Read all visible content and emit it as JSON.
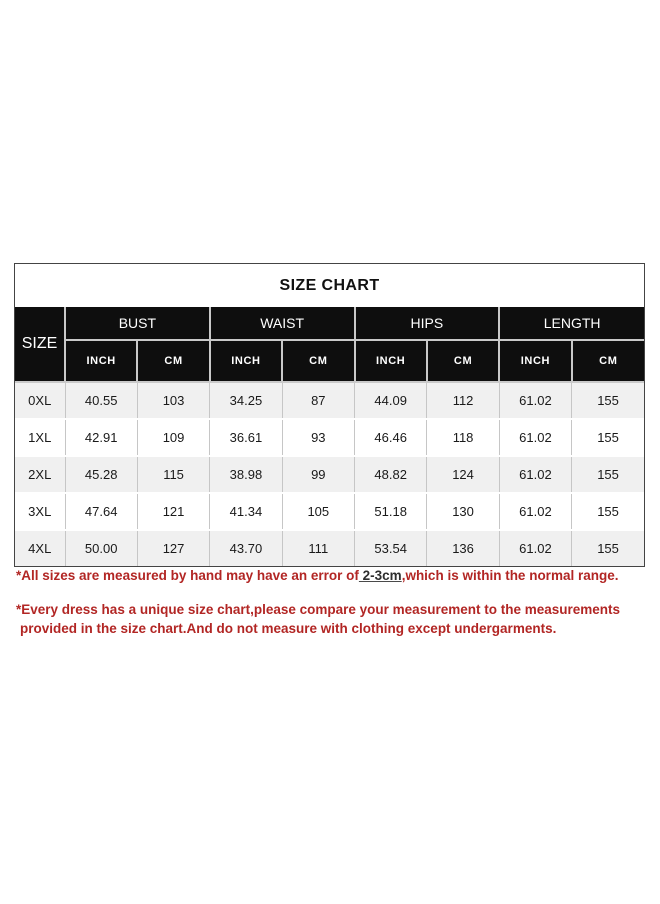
{
  "page": {
    "background_color": "#ffffff"
  },
  "size_chart": {
    "title": "SIZE CHART",
    "size_col_header": "SIZE",
    "groups": [
      {
        "label": "BUST"
      },
      {
        "label": "WAIST"
      },
      {
        "label": "HIPS"
      },
      {
        "label": "LENGTH"
      }
    ],
    "unit_headers": [
      "INCH",
      "CM"
    ],
    "rows": [
      {
        "size": "0XL",
        "bust_inch": "40.55",
        "bust_cm": "103",
        "waist_inch": "34.25",
        "waist_cm": "87",
        "hips_inch": "44.09",
        "hips_cm": "112",
        "length_inch": "61.02",
        "length_cm": "155"
      },
      {
        "size": "1XL",
        "bust_inch": "42.91",
        "bust_cm": "109",
        "waist_inch": "36.61",
        "waist_cm": "93",
        "hips_inch": "46.46",
        "hips_cm": "118",
        "length_inch": "61.02",
        "length_cm": "155"
      },
      {
        "size": "2XL",
        "bust_inch": "45.28",
        "bust_cm": "115",
        "waist_inch": "38.98",
        "waist_cm": "99",
        "hips_inch": "48.82",
        "hips_cm": "124",
        "length_inch": "61.02",
        "length_cm": "155"
      },
      {
        "size": "3XL",
        "bust_inch": "47.64",
        "bust_cm": "121",
        "waist_inch": "41.34",
        "waist_cm": "105",
        "hips_inch": "51.18",
        "hips_cm": "130",
        "length_inch": "61.02",
        "length_cm": "155"
      },
      {
        "size": "4XL",
        "bust_inch": "50.00",
        "bust_cm": "127",
        "waist_inch": "43.70",
        "waist_cm": "111",
        "hips_inch": "53.54",
        "hips_cm": "136",
        "length_inch": "61.02",
        "length_cm": "155"
      }
    ],
    "header_bg_color": "#0e0e0e",
    "shaded_row_color": "#f0f0f0"
  },
  "notes": {
    "color": "#b22624",
    "note1_prefix": "*All sizes are measured by hand may have an error of",
    "note1_underlined": " 2-3cm",
    "note1_suffix": ",which is within the normal range.",
    "note2_line1": "*Every dress has a unique size chart,please compare your measurement to the measurements",
    "note2_line2": "provided in the size chart.And do not measure with clothing except undergarments."
  },
  "chart_data": {
    "type": "table",
    "title": "SIZE CHART",
    "columns": [
      "SIZE",
      "BUST INCH",
      "BUST CM",
      "WAIST INCH",
      "WAIST CM",
      "HIPS INCH",
      "HIPS CM",
      "LENGTH INCH",
      "LENGTH CM"
    ],
    "rows": [
      [
        "0XL",
        40.55,
        103,
        34.25,
        87,
        44.09,
        112,
        61.02,
        155
      ],
      [
        "1XL",
        42.91,
        109,
        36.61,
        93,
        46.46,
        118,
        61.02,
        155
      ],
      [
        "2XL",
        45.28,
        115,
        38.98,
        99,
        48.82,
        124,
        61.02,
        155
      ],
      [
        "3XL",
        47.64,
        121,
        41.34,
        105,
        51.18,
        130,
        61.02,
        155
      ],
      [
        "4XL",
        50.0,
        127,
        43.7,
        111,
        53.54,
        136,
        61.02,
        155
      ]
    ]
  }
}
